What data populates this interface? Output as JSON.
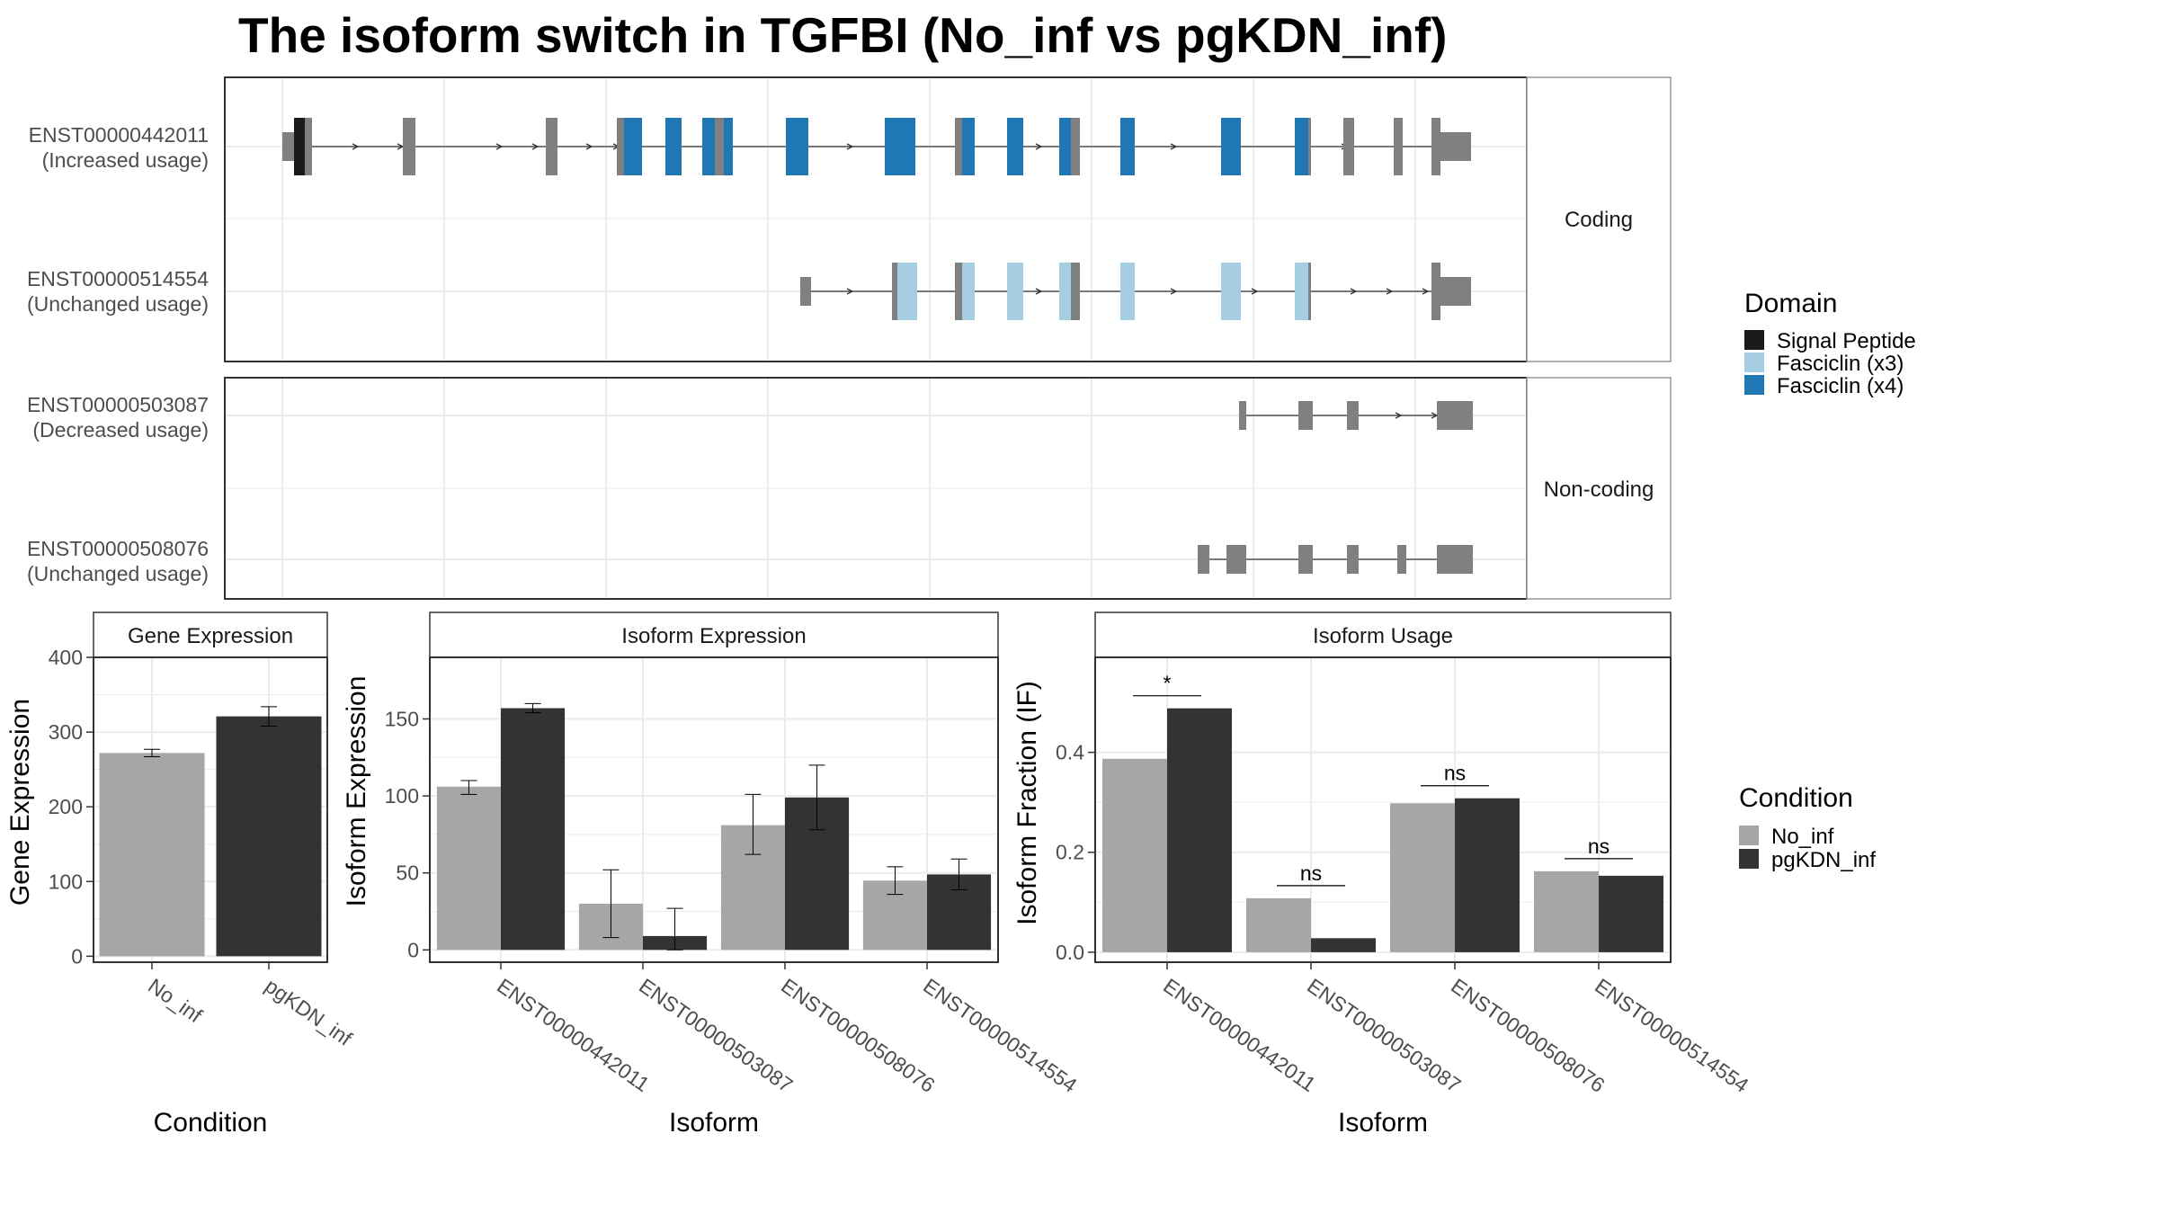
{
  "title": "The isoform switch in TGFBI (No_inf vs pgKDN_inf)",
  "colors": {
    "no_inf": "#a6a6a6",
    "pgkdn_inf": "#333333",
    "exon": "#808080",
    "signal_peptide": "#1a1a1a",
    "fasciclin_x3": "#a6cee3",
    "fasciclin_x4": "#1f78b4",
    "grid": "#ebebeb",
    "panel_border": "#333333",
    "strip_border": "#999999"
  },
  "structure": {
    "facets": [
      {
        "label": "Coding",
        "rows": [
          {
            "id": "ENST00000442011",
            "note": "(Increased usage)"
          },
          {
            "id": "ENST00000514554",
            "note": "(Unchanged usage)"
          }
        ]
      },
      {
        "label": "Non-coding",
        "rows": [
          {
            "id": "ENST00000503087",
            "note": "(Decreased usage)"
          },
          {
            "id": "ENST00000508076",
            "note": "(Unchanged usage)"
          }
        ]
      }
    ],
    "domain_legend": {
      "title": "Domain",
      "items": [
        {
          "label": "Signal Peptide",
          "color": "#1a1a1a"
        },
        {
          "label": "Fasciclin (x3)",
          "color": "#a6cee3"
        },
        {
          "label": "Fasciclin (x4)",
          "color": "#1f78b4"
        }
      ]
    }
  },
  "condition_legend": {
    "title": "Condition",
    "items": [
      {
        "label": "No_inf",
        "color": "#a6a6a6"
      },
      {
        "label": "pgKDN_inf",
        "color": "#333333"
      }
    ]
  },
  "chart_data": [
    {
      "type": "bar",
      "title": "Gene Expression",
      "xlabel": "Condition",
      "ylabel": "Gene Expression",
      "categories": [
        "No_inf",
        "pgKDN_inf"
      ],
      "values": [
        272,
        321
      ],
      "error_low": [
        267,
        308
      ],
      "error_high": [
        277,
        334
      ],
      "ylim": [
        -8,
        400
      ],
      "yticks": [
        0,
        100,
        200,
        300,
        400
      ],
      "grid": true
    },
    {
      "type": "bar",
      "title": "Isoform Expression",
      "xlabel": "Isoform",
      "ylabel": "Isoform Expression",
      "categories": [
        "ENST00000442011",
        "ENST00000503087",
        "ENST00000508076",
        "ENST00000514554"
      ],
      "series": [
        {
          "name": "No_inf",
          "values": [
            106,
            30,
            81,
            45
          ],
          "error_low": [
            101,
            8,
            62,
            36
          ],
          "error_high": [
            110,
            52,
            101,
            54
          ]
        },
        {
          "name": "pgKDN_inf",
          "values": [
            157,
            9,
            99,
            49
          ],
          "error_low": [
            154,
            0,
            78,
            39
          ],
          "error_high": [
            160,
            27,
            120,
            59
          ]
        }
      ],
      "ylim": [
        -8,
        190
      ],
      "yticks": [
        0,
        50,
        100,
        150
      ],
      "grid": true
    },
    {
      "type": "bar",
      "title": "Isoform Usage",
      "xlabel": "Isoform",
      "ylabel": "Isoform Fraction (IF)",
      "categories": [
        "ENST00000442011",
        "ENST00000503087",
        "ENST00000508076",
        "ENST00000514554"
      ],
      "series": [
        {
          "name": "No_inf",
          "values": [
            0.387,
            0.108,
            0.298,
            0.162
          ]
        },
        {
          "name": "pgKDN_inf",
          "values": [
            0.488,
            0.028,
            0.308,
            0.153
          ]
        }
      ],
      "significance": [
        "*",
        "ns",
        "ns",
        "ns"
      ],
      "ylim": [
        -0.02,
        0.59
      ],
      "yticks": [
        0.0,
        0.2,
        0.4
      ],
      "ytick_labels": [
        "0.0",
        "0.2",
        "0.4"
      ],
      "grid": true
    }
  ]
}
